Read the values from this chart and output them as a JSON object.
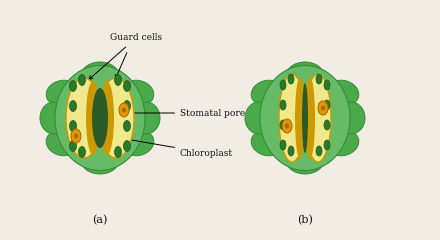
{
  "bg_color": "#f2ede4",
  "cell_green_outer": "#4aaa4a",
  "cell_green_outer_dark": "#3a8a3a",
  "cell_green_mid": "#66bb66",
  "cell_green_inner": "#88cc88",
  "guard_yellow": "#f0e88a",
  "guard_outline": "#cc9900",
  "pore_dark": "#2a5a2a",
  "chloroplast_green": "#2a7a2a",
  "chloroplast_outline": "#1a5a1a",
  "chloroplast_orange": "#dd9900",
  "chloroplast_orange_dark": "#aa6600",
  "text_color": "#111111",
  "label_fontsize": 6.5,
  "sub_fontsize": 8,
  "title_a": "(a)",
  "title_b": "(b)",
  "guard_cells_label": "Guard cells",
  "stomatal_pore_label": "Stomatal pore",
  "chloroplast_label": "Chloroplast"
}
